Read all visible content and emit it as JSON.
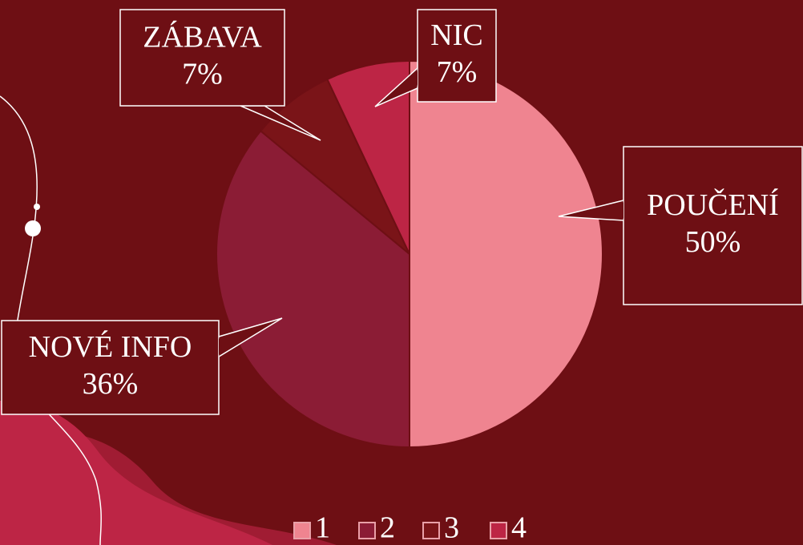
{
  "chart_data": {
    "type": "pie",
    "categories": [
      "1",
      "2",
      "3",
      "4"
    ],
    "data_labels": [
      "POUČENÍ",
      "NOVÉ INFO",
      "ZÁBAVA",
      "NIC"
    ],
    "values": [
      50,
      36,
      7,
      7
    ],
    "value_labels": [
      "50%",
      "36%",
      "7%",
      "7%"
    ],
    "colors": [
      "#ef8490",
      "#8b1c35",
      "#7a1418",
      "#bd2545"
    ],
    "legend": "bottom"
  }
}
